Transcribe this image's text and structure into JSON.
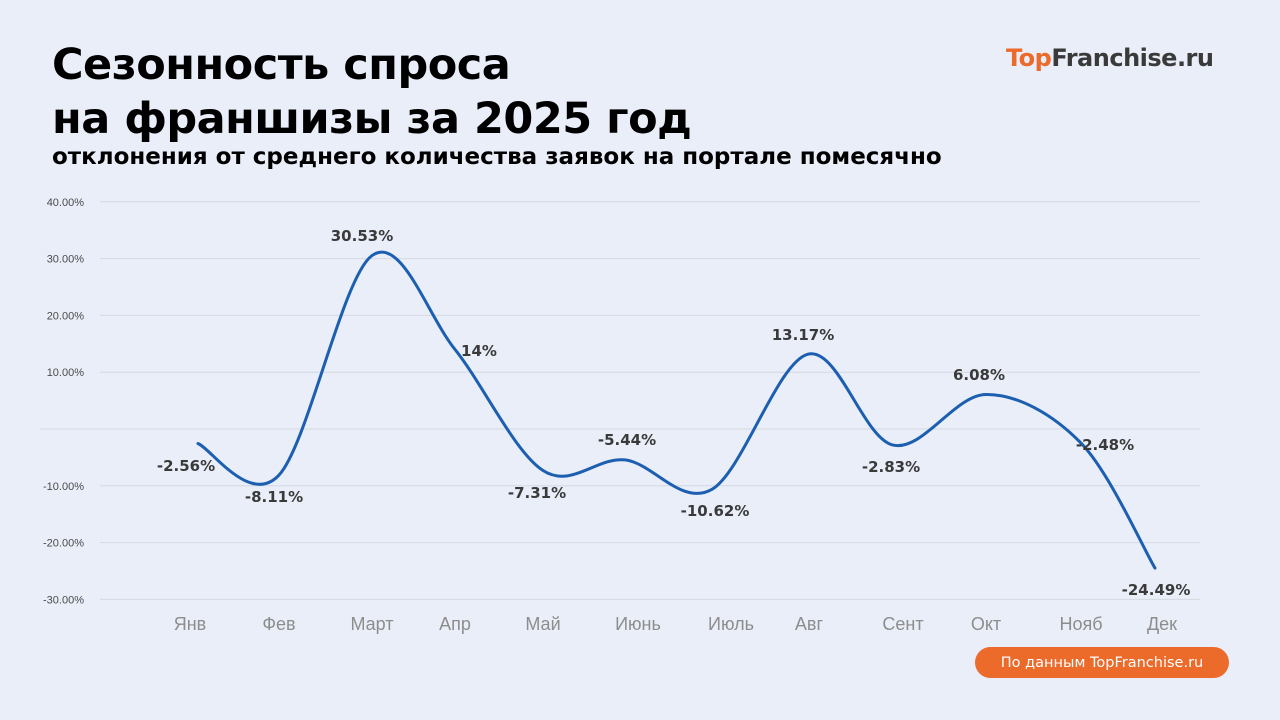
{
  "header": {
    "title_line1": "Сезонность спроса",
    "title_line2": "на франшизы за 2025 год",
    "subtitle": "отклонения от среднего количества заявок на портале помесячно"
  },
  "logo": {
    "part1": "Top",
    "part2": "Franchise.ru"
  },
  "source_badge": "По данным TopFranchise.ru",
  "colors": {
    "line": "#1c5fb0",
    "accent": "#ec6a2a",
    "background": "#e9eef8",
    "grid": "#d3d8e1"
  },
  "chart_data": {
    "type": "line",
    "categories": [
      "Янв",
      "Фев",
      "Март",
      "Апр",
      "Май",
      "Июнь",
      "Июль",
      "Авг",
      "Сент",
      "Окт",
      "Нояб",
      "Дек"
    ],
    "values": [
      -2.56,
      -8.11,
      30.53,
      14,
      -7.31,
      -5.44,
      -10.62,
      13.17,
      -2.83,
      6.08,
      -2.48,
      -24.49
    ],
    "data_labels": [
      "-2.56%",
      "-8.11%",
      "30.53%",
      "14%",
      "-7.31%",
      "-5.44%",
      "-10.62%",
      "13.17%",
      "-2.83%",
      "6.08%",
      "-2.48%",
      "-24.49%"
    ],
    "y_ticks": [
      40,
      30,
      20,
      10,
      -10,
      -20,
      -30
    ],
    "y_tick_labels": [
      "40.00%",
      "30.00%",
      "20.00%",
      "10.00%",
      "-10.00%",
      "-20.00%",
      "-30.00%"
    ],
    "ylim": [
      -30,
      40
    ],
    "grid": true,
    "smooth": true
  }
}
